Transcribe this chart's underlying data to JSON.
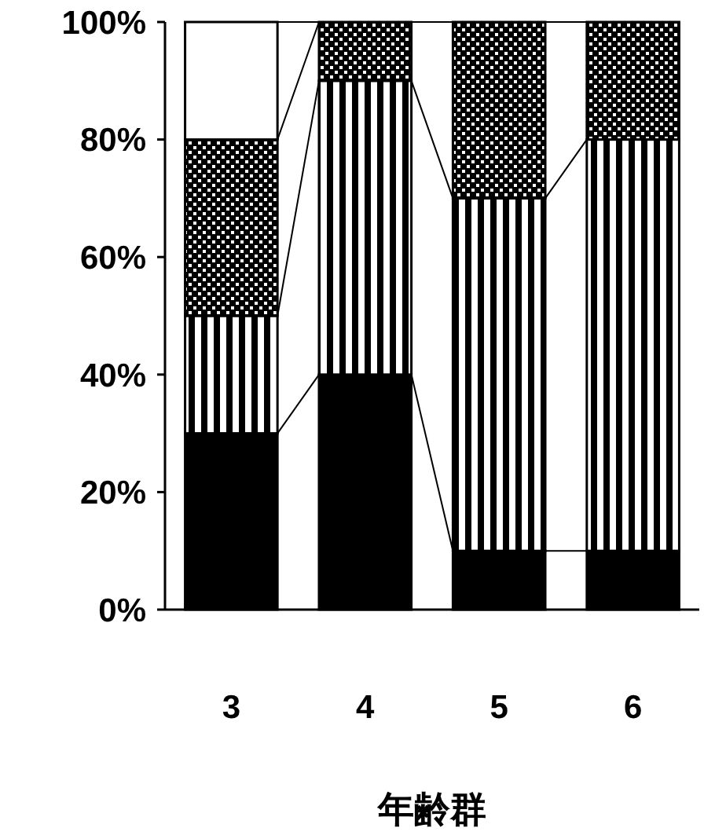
{
  "chart_data": {
    "type": "bar",
    "stacked": true,
    "xlabel": "年齢群",
    "categories": [
      "3",
      "4",
      "5",
      "6"
    ],
    "series": [
      {
        "color": "#000000",
        "values": [
          30,
          40,
          10,
          10
        ]
      },
      {
        "color": "#000000",
        "values": [
          20,
          50,
          60,
          70
        ]
      },
      {
        "color": "#000000",
        "values": [
          30,
          10,
          30,
          20
        ]
      },
      {
        "color": "#ffffff",
        "values": [
          20,
          0,
          0,
          0
        ]
      }
    ],
    "ylim": [
      0,
      100
    ],
    "yticks": [
      {
        "value": 0,
        "label": "0%"
      },
      {
        "value": 20,
        "label": "20%"
      },
      {
        "value": 40,
        "label": "40%"
      },
      {
        "value": 60,
        "label": "60%"
      },
      {
        "value": 80,
        "label": "80%"
      },
      {
        "value": 100,
        "label": "100%"
      }
    ],
    "grid": false
  }
}
